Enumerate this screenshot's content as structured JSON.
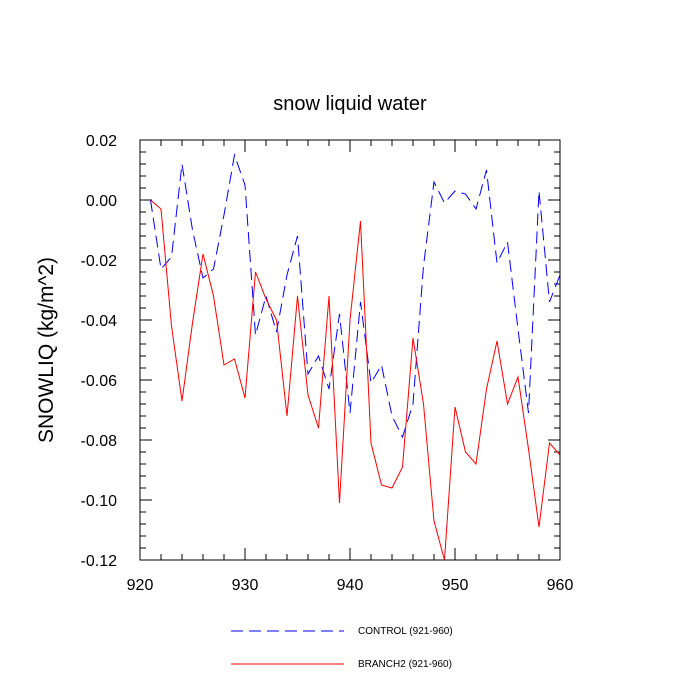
{
  "chart_data": {
    "type": "line",
    "title": "snow liquid water",
    "xlabel": "",
    "ylabel": "SNOWLIQ  (kg/m^2)",
    "xlim": [
      920,
      960
    ],
    "ylim": [
      -0.12,
      0.02
    ],
    "xticks": [
      920,
      930,
      940,
      950,
      960
    ],
    "xtick_labels": [
      "920",
      "930",
      "940",
      "950",
      "960"
    ],
    "yticks": [
      0.02,
      0.0,
      -0.02,
      -0.04,
      -0.06,
      -0.08,
      -0.1,
      -0.12
    ],
    "ytick_labels": [
      "0.02",
      "0.00",
      "-0.02",
      "-0.04",
      "-0.06",
      "-0.08",
      "-0.10",
      "-0.12"
    ],
    "grid": false,
    "legend_position": "bottom",
    "x": [
      921,
      922,
      923,
      924,
      925,
      926,
      927,
      928,
      929,
      930,
      931,
      932,
      933,
      934,
      935,
      936,
      937,
      938,
      939,
      940,
      941,
      942,
      943,
      944,
      945,
      946,
      947,
      948,
      949,
      950,
      951,
      952,
      953,
      954,
      955,
      956,
      957,
      958,
      959,
      960
    ],
    "series": [
      {
        "name": "CONTROL (921-960)",
        "color": "#0000ff",
        "style": "dashed",
        "values": [
          0.0,
          -0.023,
          -0.019,
          0.012,
          -0.01,
          -0.026,
          -0.023,
          -0.005,
          0.015,
          0.005,
          -0.045,
          -0.032,
          -0.044,
          -0.025,
          -0.012,
          -0.058,
          -0.052,
          -0.063,
          -0.038,
          -0.071,
          -0.034,
          -0.061,
          -0.055,
          -0.072,
          -0.079,
          -0.068,
          -0.022,
          0.006,
          -0.001,
          0.003,
          0.002,
          -0.003,
          0.01,
          -0.021,
          -0.014,
          -0.043,
          -0.071,
          0.003,
          -0.034,
          -0.025
        ]
      },
      {
        "name": "BRANCH2 (921-960)",
        "color": "#ff0000",
        "style": "solid",
        "values": [
          0.0,
          -0.003,
          -0.042,
          -0.067,
          -0.041,
          -0.018,
          -0.032,
          -0.055,
          -0.053,
          -0.066,
          -0.024,
          -0.033,
          -0.04,
          -0.072,
          -0.032,
          -0.065,
          -0.076,
          -0.032,
          -0.101,
          -0.04,
          -0.007,
          -0.081,
          -0.095,
          -0.096,
          -0.089,
          -0.046,
          -0.068,
          -0.107,
          -0.12,
          -0.069,
          -0.084,
          -0.088,
          -0.063,
          -0.047,
          -0.068,
          -0.059,
          -0.083,
          -0.109,
          -0.081,
          -0.085
        ]
      }
    ]
  }
}
